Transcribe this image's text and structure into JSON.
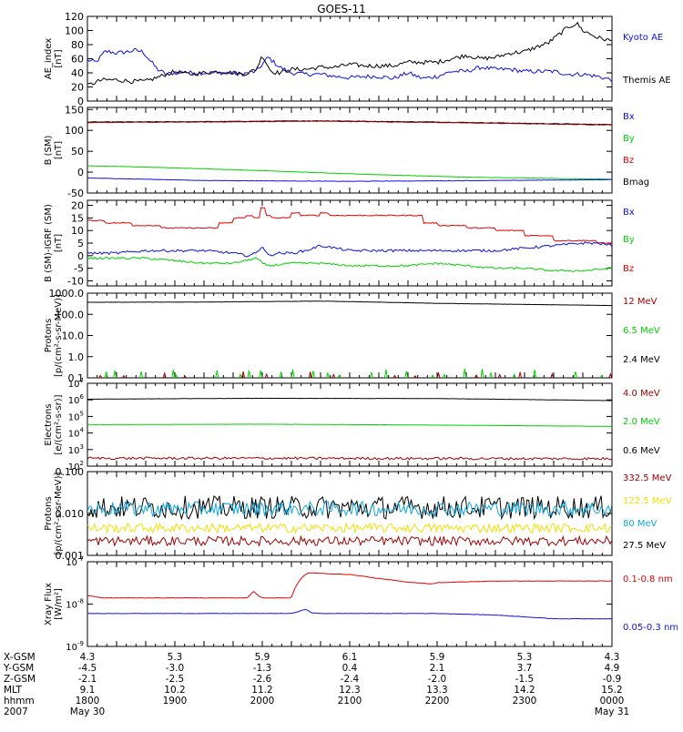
{
  "title": "GOES-11",
  "colors": {
    "blue": "#1010e0",
    "green": "#00d000",
    "red": "#e00000",
    "darkred": "#a00000",
    "black": "#000000",
    "yellow": "#f0e000",
    "cyan": "#10a8e0"
  },
  "chart_data": [
    {
      "type": "line",
      "ylabel": [
        "AE_index",
        "[nT]"
      ],
      "ylim": [
        0,
        120
      ],
      "yscale": "linear",
      "yticks": [
        "0",
        "20",
        "40",
        "60",
        "80",
        "100",
        "120"
      ],
      "legend": [
        {
          "label": "Kyoto AE",
          "color": "#1010e0"
        },
        {
          "label": "Themis AE",
          "color": "#000000"
        }
      ],
      "series": [
        {
          "name": "Kyoto AE",
          "color": "#1010e0",
          "noise": 3,
          "x": [
            0,
            0.3,
            0.6,
            0.75,
            1.0,
            1.4,
            1.6,
            1.9,
            2.4,
            2.7,
            3.0,
            3.2,
            3.3,
            3.5,
            3.8,
            4.2,
            4.6,
            5.0,
            5.3,
            5.5,
            5.8,
            6.2,
            6.6,
            7.0,
            7.5,
            8.0,
            8.5,
            9.0,
            9.5,
            10.0,
            10.5,
            11.0,
            11.5,
            12.0,
            12.5,
            13.0,
            13.5,
            14.0,
            14.5,
            15.0,
            15.5,
            16.0,
            16.5,
            17.0,
            17.5,
            18.0
          ],
          "y": [
            58,
            55,
            70,
            70,
            68,
            70,
            72,
            70,
            45,
            38,
            40,
            40,
            42,
            40,
            40,
            40,
            40,
            40,
            38,
            40,
            42,
            62,
            48,
            40,
            38,
            38,
            35,
            33,
            35,
            35,
            32,
            40,
            32,
            35,
            42,
            42,
            48,
            45,
            45,
            42,
            42,
            42,
            38,
            38,
            35,
            30
          ]
        },
        {
          "name": "Themis AE",
          "color": "#000000",
          "noise": 3,
          "x": [
            0,
            0.5,
            1.0,
            1.5,
            2.0,
            2.5,
            3.0,
            3.5,
            4.0,
            4.5,
            5.0,
            5.3,
            5.5,
            5.8,
            6.0,
            6.3,
            6.6,
            7.0,
            7.5,
            8.0,
            8.5,
            9.0,
            9.5,
            10.0,
            10.5,
            11.0,
            11.5,
            12.0,
            12.5,
            13.0,
            13.5,
            14.0,
            14.5,
            15.0,
            15.5,
            15.8,
            16.2,
            16.5,
            16.8,
            17.0,
            17.5,
            18.0
          ],
          "y": [
            22,
            30,
            30,
            28,
            28,
            35,
            42,
            38,
            40,
            42,
            40,
            38,
            40,
            45,
            65,
            42,
            40,
            45,
            45,
            48,
            48,
            52,
            50,
            50,
            50,
            55,
            55,
            55,
            60,
            65,
            60,
            62,
            68,
            70,
            78,
            82,
            95,
            105,
            110,
            100,
            90,
            85
          ]
        }
      ]
    },
    {
      "type": "line",
      "ylabel": [
        "B (SM)",
        "[nT]"
      ],
      "ylim": [
        -50,
        155
      ],
      "yscale": "linear",
      "yticks": [
        "-50",
        "0",
        "50",
        "100",
        "150"
      ],
      "legend": [
        {
          "label": "Bx",
          "color": "#1010e0"
        },
        {
          "label": "By",
          "color": "#00d000"
        },
        {
          "label": "Bz",
          "color": "#e00000"
        },
        {
          "label": "Bmag",
          "color": "#000000"
        }
      ],
      "series": [
        {
          "name": "Bmag",
          "color": "#000000",
          "noise": 0.6,
          "x": [
            0,
            4,
            8,
            12,
            18
          ],
          "y": [
            120,
            121,
            123,
            120,
            114
          ]
        },
        {
          "name": "Bz",
          "color": "#a00000",
          "noise": 0.6,
          "x": [
            0,
            4,
            8,
            12,
            18
          ],
          "y": [
            119,
            120,
            122,
            119,
            113
          ]
        },
        {
          "name": "By",
          "color": "#00d000",
          "noise": 0.4,
          "x": [
            0,
            1,
            5,
            9,
            13,
            18
          ],
          "y": [
            15,
            14,
            6,
            -4,
            -12,
            -17
          ]
        },
        {
          "name": "Bx",
          "color": "#1010e0",
          "noise": 0.4,
          "x": [
            0,
            4,
            9,
            14,
            18
          ],
          "y": [
            -14,
            -20,
            -22,
            -20,
            -18
          ]
        }
      ]
    },
    {
      "type": "line",
      "ylabel": [
        "B (SM)-IGRF (SM)",
        "[nT]"
      ],
      "ylim": [
        -12,
        22
      ],
      "yscale": "linear",
      "yticks": [
        "-10",
        "-5",
        "0",
        "5",
        "10",
        "15",
        "20"
      ],
      "legend": [
        {
          "label": "Bx",
          "color": "#1010e0"
        },
        {
          "label": "By",
          "color": "#00d000"
        },
        {
          "label": "Bz",
          "color": "#e00000"
        }
      ],
      "series": [
        {
          "name": "Bz",
          "color": "#e00000",
          "step": true,
          "noise": 0.2,
          "x": [
            0,
            0.6,
            1.5,
            2.5,
            3.5,
            4.0,
            4.5,
            5.0,
            5.4,
            5.7,
            5.9,
            6.1,
            6.3,
            6.7,
            7.0,
            7.3,
            7.7,
            8.0,
            8.3,
            8.7,
            9.0,
            9.5,
            10.0,
            10.5,
            11.0,
            11.5,
            12.0,
            12.5,
            13.0,
            13.5,
            14.0,
            14.5,
            15.0,
            15.5,
            16.0,
            16.5,
            17.0,
            17.5,
            18.0
          ],
          "y": [
            14,
            13,
            12,
            11,
            11,
            11,
            13,
            15,
            16,
            15,
            19,
            16,
            15,
            15,
            17,
            16,
            16,
            17,
            16,
            16,
            16,
            16,
            16,
            16,
            16,
            13,
            12,
            12,
            11,
            11,
            10,
            10,
            8,
            8,
            6,
            6,
            6,
            5,
            4
          ]
        },
        {
          "name": "Bx",
          "color": "#1010e0",
          "noise": 0.5,
          "x": [
            0,
            1,
            2,
            3,
            4,
            5,
            5.5,
            5.8,
            6.0,
            6.2,
            6.5,
            7.0,
            7.5,
            8.0,
            9,
            10,
            11,
            12,
            13,
            14,
            15,
            16,
            17,
            17.5,
            18
          ],
          "y": [
            1,
            1,
            2,
            2,
            2,
            1,
            0,
            1,
            4,
            0,
            1,
            1,
            2,
            4,
            2,
            2,
            2,
            2,
            2,
            2,
            3,
            4,
            5,
            5,
            4
          ]
        },
        {
          "name": "By",
          "color": "#00d000",
          "noise": 0.4,
          "x": [
            0,
            1,
            2,
            3,
            4,
            5,
            5.8,
            6.0,
            6.2,
            7,
            8,
            9,
            10,
            11,
            12,
            13,
            14,
            15,
            16,
            17,
            18
          ],
          "y": [
            -1,
            -1,
            -1,
            -2,
            -3,
            -3,
            -1,
            -3,
            -4,
            -3,
            -3,
            -4,
            -4,
            -4,
            -3,
            -4,
            -5,
            -5,
            -6,
            -6,
            -5
          ]
        }
      ]
    },
    {
      "type": "line",
      "ylabel": [
        "Protons",
        "[p/(cm²-s-sr-MeV)]"
      ],
      "ylim": [
        0.1,
        1000
      ],
      "yscale": "log",
      "yticks": [
        "0.1",
        "1.0",
        "10.0",
        "100.0",
        "1000.0"
      ],
      "legend": [
        {
          "label": "12 MeV",
          "color": "#a00000"
        },
        {
          "label": "6.5 MeV",
          "color": "#00d000"
        },
        {
          "label": "2.4 MeV",
          "color": "#000000"
        }
      ],
      "series": [
        {
          "name": "2.4 MeV",
          "color": "#000000",
          "noise": 0.01,
          "x": [
            0,
            4,
            8,
            12,
            18
          ],
          "y": [
            370,
            380,
            420,
            330,
            260
          ]
        },
        {
          "name": "6.5 MeV",
          "color": "#00d000",
          "spikes": [
            0.6,
            0.9,
            1.8,
            2.9,
            3.0,
            4.4,
            5.2,
            5.5,
            5.9,
            6.6,
            7.0,
            7.7,
            8.2,
            8.6,
            9.7,
            10.2,
            10.9,
            11.8,
            12.2,
            12.9,
            13.5,
            13.8,
            14.6,
            15.3,
            16.7,
            17.6
          ],
          "spikeMax": 0.3
        },
        {
          "name": "12 MeV",
          "color": "#a00000",
          "spikes": [
            0.4,
            1.2,
            2.6,
            3.3,
            5.3,
            6.1,
            7.6,
            8.4,
            10.5,
            11.2,
            12.0,
            13.3,
            14.1,
            14.8,
            15.9,
            17.9
          ],
          "spikeMax": 0.2
        }
      ]
    },
    {
      "type": "line",
      "ylabel": [
        "Electrons",
        "[e/(cm²-s-sr)]"
      ],
      "ylim": [
        100,
        10000000
      ],
      "yscale": "log",
      "ytickExps": [
        2,
        3,
        4,
        5,
        6,
        7
      ],
      "legend": [
        {
          "label": "4.0 MeV",
          "color": "#a00000"
        },
        {
          "label": "2.0 MeV",
          "color": "#00d000"
        },
        {
          "label": "0.6 MeV",
          "color": "#000000"
        }
      ],
      "series": [
        {
          "name": "0.6 MeV",
          "color": "#000000",
          "noise": 0.01,
          "x": [
            0,
            6,
            12,
            18
          ],
          "y": [
            1100000,
            1250000,
            1200000,
            900000
          ]
        },
        {
          "name": "2.0 MeV",
          "color": "#00d000",
          "noise": 0.01,
          "x": [
            0,
            6,
            12,
            18
          ],
          "y": [
            32000,
            34000,
            30000,
            25000
          ]
        },
        {
          "name": "4.0 MeV",
          "color": "#a00000",
          "noise": 0.15,
          "x": [
            0,
            6,
            12,
            18
          ],
          "y": [
            300,
            300,
            290,
            280
          ]
        }
      ]
    },
    {
      "type": "line",
      "ylabel": [
        "Protons",
        "[p/(cm²-s-sr-MeV)]"
      ],
      "ylim": [
        0.001,
        0.1
      ],
      "yscale": "log",
      "yticks": [
        "0.001",
        "0.010",
        "0.100"
      ],
      "legend": [
        {
          "label": "332.5 MeV",
          "color": "#a00000"
        },
        {
          "label": "122.5 MeV",
          "color": "#f0e000"
        },
        {
          "label": "80 MeV",
          "color": "#10a8e0"
        },
        {
          "label": "27.5 MeV",
          "color": "#000000"
        }
      ],
      "series": [
        {
          "name": "27.5 MeV",
          "color": "#000000",
          "noise": 0.55,
          "x": [
            0,
            18
          ],
          "y": [
            0.014,
            0.014
          ]
        },
        {
          "name": "80 MeV",
          "color": "#10a8e0",
          "noise": 0.35,
          "x": [
            0,
            18
          ],
          "y": [
            0.013,
            0.013
          ]
        },
        {
          "name": "122.5 MeV",
          "color": "#f0e000",
          "noise": 0.22,
          "x": [
            0,
            18
          ],
          "y": [
            0.0045,
            0.0045
          ]
        },
        {
          "name": "332.5 MeV",
          "color": "#a00000",
          "noise": 0.22,
          "x": [
            0,
            18
          ],
          "y": [
            0.0022,
            0.0022
          ]
        }
      ]
    },
    {
      "type": "line",
      "ylabel": [
        "Xray Flux",
        "[W/m²]"
      ],
      "ylim": [
        1e-09,
        1e-07
      ],
      "yscale": "log",
      "ytickExps": [
        -9,
        -8,
        -7
      ],
      "legend": [
        {
          "label": "0.1-0.8 nm",
          "color": "#e00000"
        },
        {
          "label": "0.05-0.3 nm",
          "color": "#1010e0"
        }
      ],
      "series": [
        {
          "name": "0.1-0.8 nm",
          "color": "#e00000",
          "noise": 0.01,
          "x": [
            0,
            0.5,
            1,
            2,
            4,
            5.5,
            5.7,
            5.9,
            6.05,
            6.2,
            7,
            7.4,
            7.6,
            8,
            9,
            9.5,
            10,
            11,
            11.8,
            12,
            14,
            16,
            18
          ],
          "y": [
            1.6e-08,
            1.4e-08,
            1.4e-08,
            1.4e-08,
            1.4e-08,
            1.4e-08,
            2e-08,
            1.5e-08,
            1.4e-08,
            1.4e-08,
            1.4e-08,
            4.5e-08,
            5.5e-08,
            5.3e-08,
            5e-08,
            4.5e-08,
            4e-08,
            3.3e-08,
            3e-08,
            3.2e-08,
            3.5e-08,
            3.5e-08,
            3.5e-08
          ]
        },
        {
          "name": "0.05-0.3 nm",
          "color": "#1010e0",
          "noise": 0.01,
          "x": [
            0,
            2,
            4,
            7,
            7.5,
            7.7,
            8,
            10,
            12,
            14,
            15,
            16,
            18
          ],
          "y": [
            6e-09,
            6e-09,
            6e-09,
            6e-09,
            7.5e-09,
            6.2e-09,
            6e-09,
            6e-09,
            6e-09,
            5.5e-09,
            5e-09,
            4.5e-09,
            4.5e-09
          ]
        }
      ]
    }
  ],
  "ephemeris": {
    "labels": [
      "X-GSM",
      "Y-GSM",
      "Z-GSM",
      "MLT",
      "hhmm",
      "2007"
    ],
    "columns": [
      [
        "4.3",
        "-4.5",
        "-2.1",
        "9.1",
        "1800",
        "May 30"
      ],
      [
        "5.3",
        "-3.0",
        "-2.5",
        "10.2",
        "1900",
        ""
      ],
      [
        "5.9",
        "-1.3",
        "-2.6",
        "11.2",
        "2000",
        ""
      ],
      [
        "6.1",
        "0.4",
        "-2.4",
        "12.3",
        "2100",
        ""
      ],
      [
        "5.9",
        "2.1",
        "-2.0",
        "13.3",
        "2200",
        ""
      ],
      [
        "5.3",
        "3.7",
        "-1.5",
        "14.2",
        "2300",
        ""
      ],
      [
        "4.3",
        "4.9",
        "-0.9",
        "15.2",
        "0000",
        "May 31"
      ]
    ]
  }
}
